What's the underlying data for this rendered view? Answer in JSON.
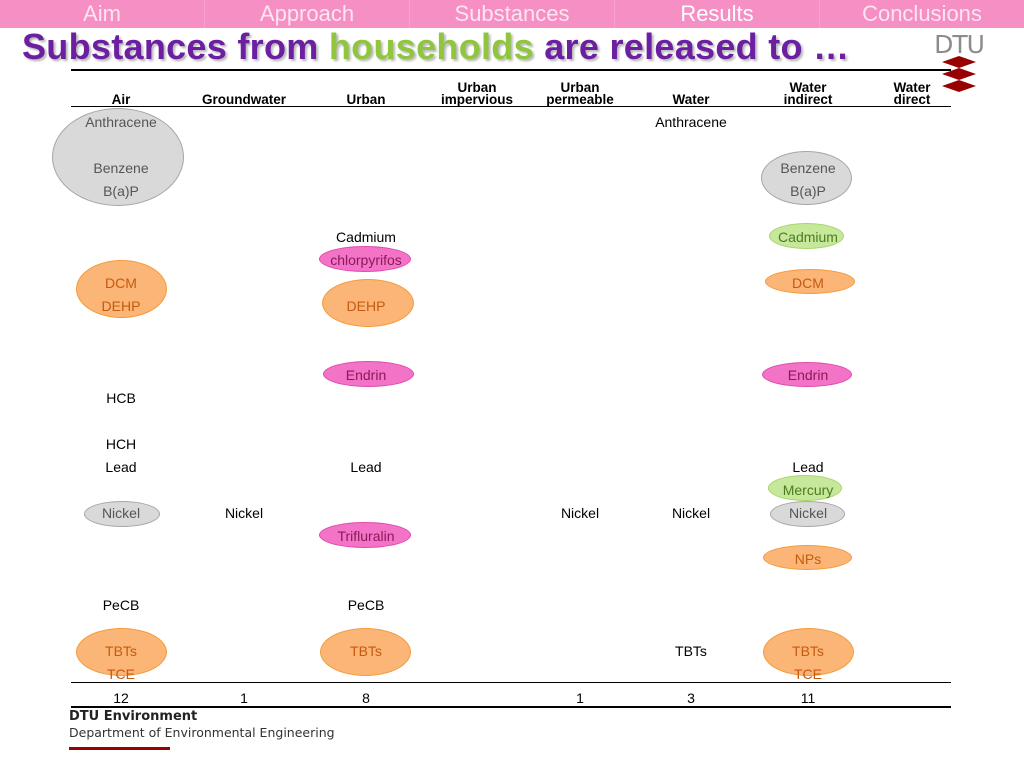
{
  "nav": [
    "Aim",
    "Approach",
    "Substances",
    "Results",
    "Conclusions"
  ],
  "nav_active": "Results",
  "title": {
    "part1": "Substances from ",
    "highlight": "households",
    "part2": " are released to …"
  },
  "logo_text": "DTU",
  "columns": [
    {
      "line1": "",
      "line2": "Air"
    },
    {
      "line1": "",
      "line2": "Groundwater"
    },
    {
      "line1": "",
      "line2": "Urban"
    },
    {
      "line1": "Urban",
      "line2": "impervious"
    },
    {
      "line1": "Urban",
      "line2": "permeable"
    },
    {
      "line1": "",
      "line2": "Water"
    },
    {
      "line1": "Water",
      "line2": "indirect"
    },
    {
      "line1": "Water",
      "line2": "direct"
    }
  ],
  "cells": {
    "air": [
      "Anthracene",
      "Benzene",
      "B(a)P",
      "DCM",
      "DEHP",
      "HCB",
      "HCH",
      "Lead",
      "Nickel",
      "PeCB",
      "TBTs",
      "TCE"
    ],
    "groundwater": [
      "Nickel"
    ],
    "urban": [
      "Cadmium",
      "chlorpyrifos",
      "DEHP",
      "Endrin",
      "Lead",
      "Trifluralin",
      "PeCB",
      "TBTs"
    ],
    "urban_permeable": [
      "Nickel"
    ],
    "water": [
      "Anthracene",
      "Nickel",
      "TBTs"
    ],
    "water_indirect": [
      "Benzene",
      "B(a)P",
      "Cadmium",
      "DCM",
      "Endrin",
      "Lead",
      "Mercury",
      "Nickel",
      "NPs",
      "TBTs",
      "TCE"
    ]
  },
  "totals": [
    "12",
    "1",
    "8",
    "",
    "1",
    "3",
    "11",
    ""
  ],
  "highlight_colors": {
    "grey": "#d9d9d9",
    "orange": "#fbb576",
    "pink": "#f373c7",
    "green": "#c6e89b"
  },
  "footer": {
    "org": "DTU Environment",
    "dept": "Department of Environmental Engineering"
  }
}
